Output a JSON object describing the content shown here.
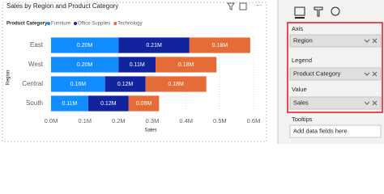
{
  "chart_data": {
    "type": "bar",
    "orientation": "horizontal",
    "stacked": true,
    "title": "Sales by Region and Product Category",
    "legend_title": "Product Category",
    "x_label": "Sales",
    "y_label": "Region",
    "categories": [
      "East",
      "West",
      "Central",
      "South"
    ],
    "series": [
      {
        "name": "Furniture",
        "color": "#118dff",
        "values": [
          200000,
          200000,
          160000,
          110000
        ],
        "value_labels": [
          "0.20M",
          "0.20M",
          "0.16M",
          "0.11M"
        ]
      },
      {
        "name": "Office Supplies",
        "color": "#12239e",
        "values": [
          210000,
          110000,
          120000,
          120000
        ],
        "value_labels": [
          "0.21M",
          "0.11M",
          "0.12M",
          "0.12M"
        ]
      },
      {
        "name": "Technology",
        "color": "#e66c37",
        "values": [
          180000,
          180000,
          180000,
          90000
        ],
        "value_labels": [
          "0.18M",
          "0.18M",
          "0.18M",
          "0.09M"
        ]
      }
    ],
    "xlim": [
      0,
      600000
    ],
    "xticks": [
      {
        "value": 0,
        "label": "0.0M"
      },
      {
        "value": 100000,
        "label": "0.1M"
      },
      {
        "value": 200000,
        "label": "0.2M"
      },
      {
        "value": 300000,
        "label": "0.3M"
      },
      {
        "value": 400000,
        "label": "0.4M"
      },
      {
        "value": 500000,
        "label": "0.5M"
      },
      {
        "value": 600000,
        "label": "0.6M"
      }
    ],
    "grid": true
  },
  "pane": {
    "wells": [
      {
        "title": "Axis",
        "field": "Region"
      },
      {
        "title": "Legend",
        "field": "Product Category"
      },
      {
        "title": "Value",
        "field": "Sales"
      },
      {
        "title": "Tooltips",
        "field": "Add data fields here"
      }
    ]
  }
}
